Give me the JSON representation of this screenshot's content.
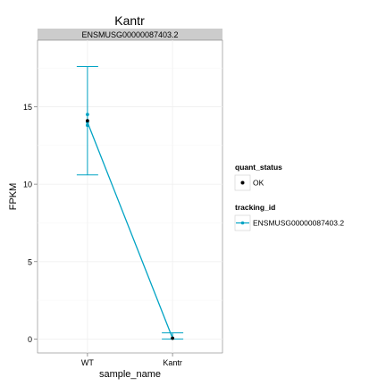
{
  "chart_data": {
    "type": "line",
    "title": "Kantr",
    "facet_label": "ENSMUSG00000087403.2",
    "xlabel": "sample_name",
    "ylabel": "FPKM",
    "categories": [
      "WT",
      "Kantr"
    ],
    "ylim": [
      -0.9,
      19.3
    ],
    "yticks": [
      0,
      5,
      10,
      15
    ],
    "ytick_labels": [
      "0",
      "5",
      "10",
      "15"
    ],
    "grid": true,
    "colors": {
      "series": "#00a3c4",
      "points": "#000000",
      "strip": "#cccccc"
    },
    "series": [
      {
        "name": "ENSMUSG00000087403.2",
        "values": [
          14.0,
          0.05
        ],
        "error_low": [
          10.6,
          0.0
        ],
        "error_high": [
          17.6,
          0.4
        ],
        "replicates": [
          [
            14.5,
            13.8,
            14.1
          ],
          [
            0.05
          ]
        ]
      }
    ],
    "legends": [
      {
        "title": "quant_status",
        "entries": [
          {
            "label": "OK",
            "shape": "dot"
          }
        ]
      },
      {
        "title": "tracking_id",
        "entries": [
          {
            "label": "ENSMUSG00000087403.2",
            "shape": "line-point"
          }
        ]
      }
    ],
    "legend_position": "right"
  }
}
